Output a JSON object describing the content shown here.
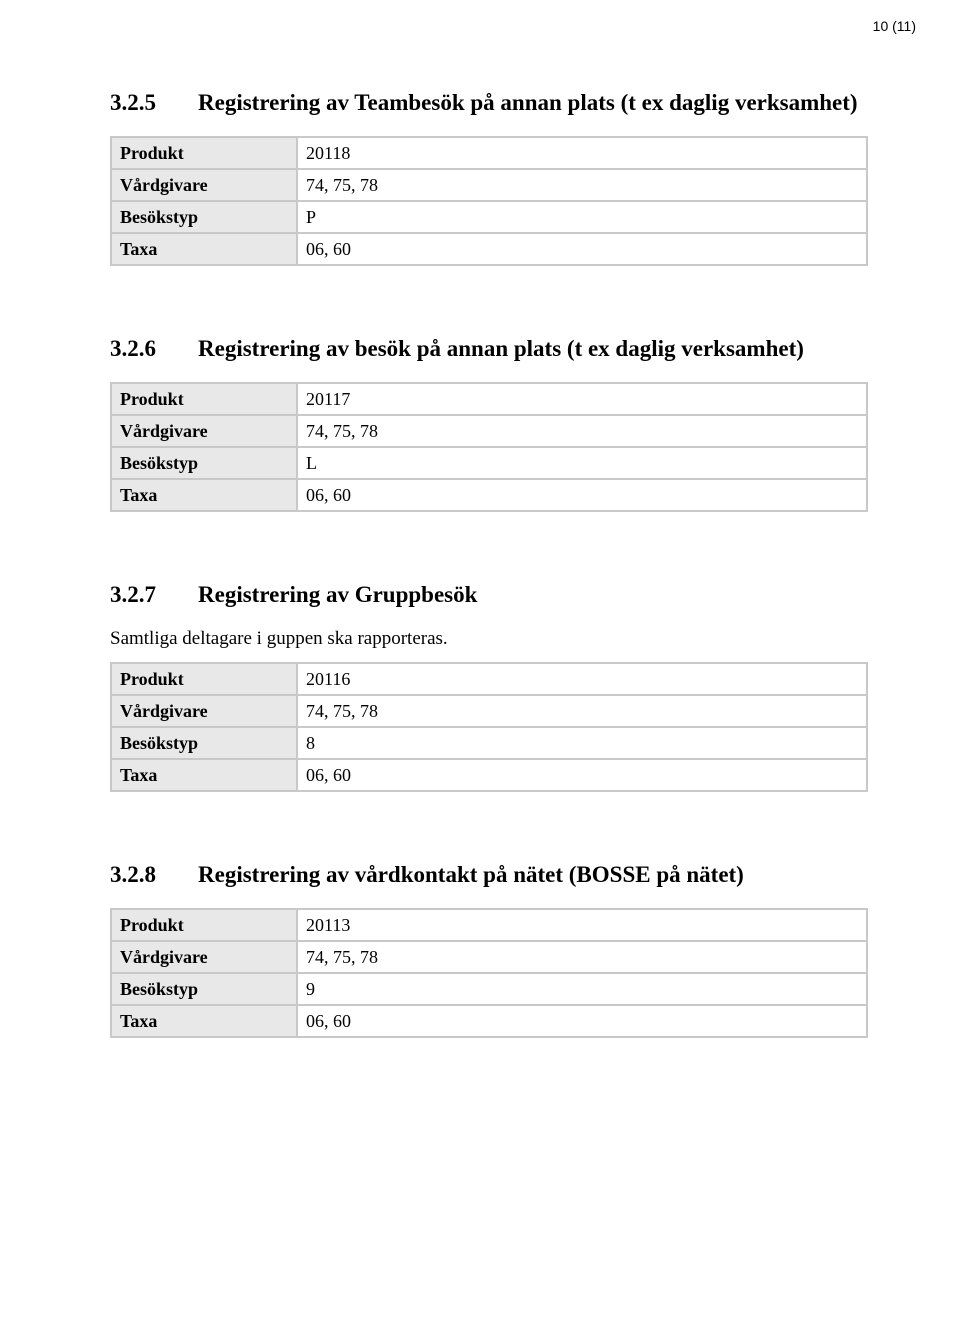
{
  "page_number": "10 (11)",
  "row_labels": {
    "produkt": "Produkt",
    "vardgivare": "Vårdgivare",
    "besokstyp": "Besökstyp",
    "taxa": "Taxa"
  },
  "sections": [
    {
      "number": "3.2.5",
      "title": "Registrering av Teambesök på annan plats (t ex daglig verksamhet)",
      "desc": "",
      "produkt": "20118",
      "vardgivare": "74, 75, 78",
      "besokstyp": "P",
      "taxa": "06, 60"
    },
    {
      "number": "3.2.6",
      "title": "Registrering av besök på annan plats (t ex daglig verksamhet)",
      "desc": "",
      "produkt": "20117",
      "vardgivare": "74, 75, 78",
      "besokstyp": "L",
      "taxa": "06, 60"
    },
    {
      "number": "3.2.7",
      "title": "Registrering av Gruppbesök",
      "desc": "Samtliga deltagare i guppen ska rapporteras.",
      "produkt": "20116",
      "vardgivare": "74, 75, 78",
      "besokstyp": "8",
      "taxa": "06, 60"
    },
    {
      "number": "3.2.8",
      "title": "Registrering av vårdkontakt på nätet (BOSSE på nätet)",
      "desc": "",
      "produkt": "20113",
      "vardgivare": "74, 75, 78",
      "besokstyp": "9",
      "taxa": "06, 60"
    }
  ]
}
